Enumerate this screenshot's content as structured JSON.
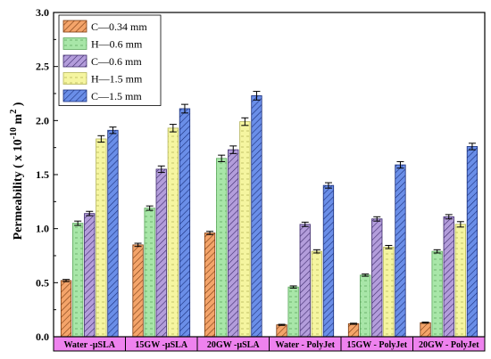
{
  "chart_data": {
    "type": "bar",
    "ylabel": "Permeability ( x 10",
    "ylabel_exp1": "-10",
    "ylabel_unit": " m",
    "ylabel_exp2": "2",
    "ylabel_close": " )",
    "ylim": [
      0,
      3.0
    ],
    "yticks": [
      "0.0",
      "0.5",
      "1.0",
      "1.5",
      "2.0",
      "2.5",
      "3.0"
    ],
    "legend_position": "top-left",
    "grid": false,
    "categories": [
      "Water -µSLA",
      "15GW -µSLA",
      "20GW -µSLA",
      "Water - PolyJet",
      "15GW - PolyJet",
      "20GW - PolyJet"
    ],
    "category_box_color": "#ee82ee",
    "series": [
      {
        "name": "C—0.34 mm",
        "color": "#f4a46a",
        "pattern": "hatch",
        "values": [
          0.52,
          0.85,
          0.96,
          0.11,
          0.12,
          0.13
        ],
        "errors": [
          0.01,
          0.015,
          0.015,
          0.005,
          0.005,
          0.005
        ]
      },
      {
        "name": "H—0.6 mm",
        "color": "#a8e6a8",
        "pattern": "dash",
        "values": [
          1.05,
          1.19,
          1.65,
          0.46,
          0.57,
          0.79
        ],
        "errors": [
          0.02,
          0.02,
          0.03,
          0.01,
          0.01,
          0.015
        ]
      },
      {
        "name": "C—0.6 mm",
        "color": "#b39ddb",
        "pattern": "hatch",
        "values": [
          1.14,
          1.55,
          1.73,
          1.04,
          1.09,
          1.11
        ],
        "errors": [
          0.02,
          0.03,
          0.035,
          0.02,
          0.02,
          0.02
        ]
      },
      {
        "name": "H—1.5 mm",
        "color": "#f5f5a0",
        "pattern": "dash",
        "values": [
          1.83,
          1.93,
          1.99,
          0.79,
          0.83,
          1.04
        ],
        "errors": [
          0.03,
          0.035,
          0.035,
          0.015,
          0.015,
          0.025
        ]
      },
      {
        "name": "C—1.5 mm",
        "color": "#6a8ee8",
        "pattern": "hatch",
        "values": [
          1.91,
          2.11,
          2.23,
          1.4,
          1.59,
          1.76
        ],
        "errors": [
          0.03,
          0.04,
          0.04,
          0.025,
          0.03,
          0.03
        ]
      }
    ]
  }
}
